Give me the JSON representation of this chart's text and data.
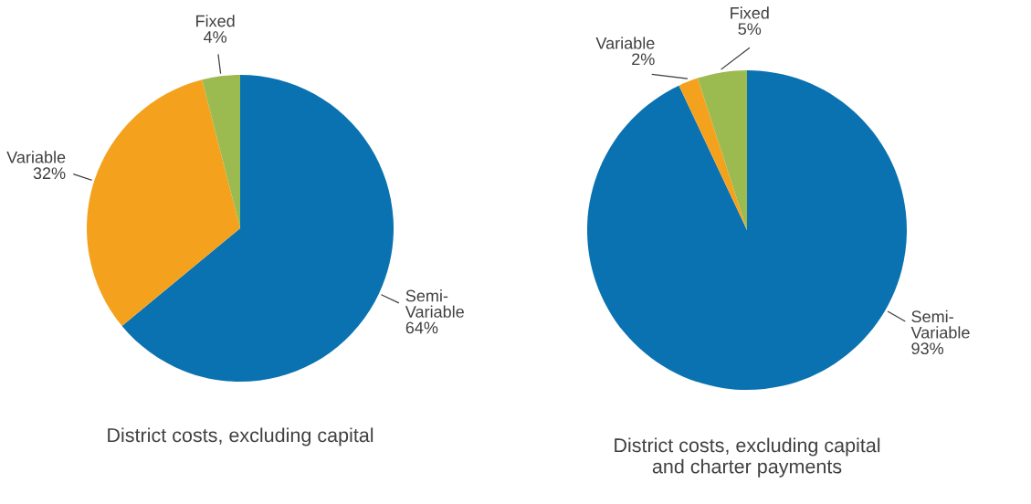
{
  "chart_data": [
    {
      "type": "pie",
      "title": "District costs, excluding capital",
      "categories": [
        "Semi-Variable",
        "Variable",
        "Fixed"
      ],
      "values": [
        64,
        32,
        4
      ],
      "value_labels": [
        "64%",
        "32%",
        "4%"
      ],
      "colors": [
        "#0a72b0",
        "#f4a21e",
        "#9bbb50"
      ]
    },
    {
      "type": "pie",
      "title": "District costs, excluding capital\nand charter payments",
      "categories": [
        "Semi-Variable",
        "Variable",
        "Fixed"
      ],
      "values": [
        93,
        2,
        5
      ],
      "value_labels": [
        "93%",
        "2%",
        "5%"
      ],
      "colors": [
        "#0a72b0",
        "#f4a21e",
        "#9bbb50"
      ]
    }
  ]
}
